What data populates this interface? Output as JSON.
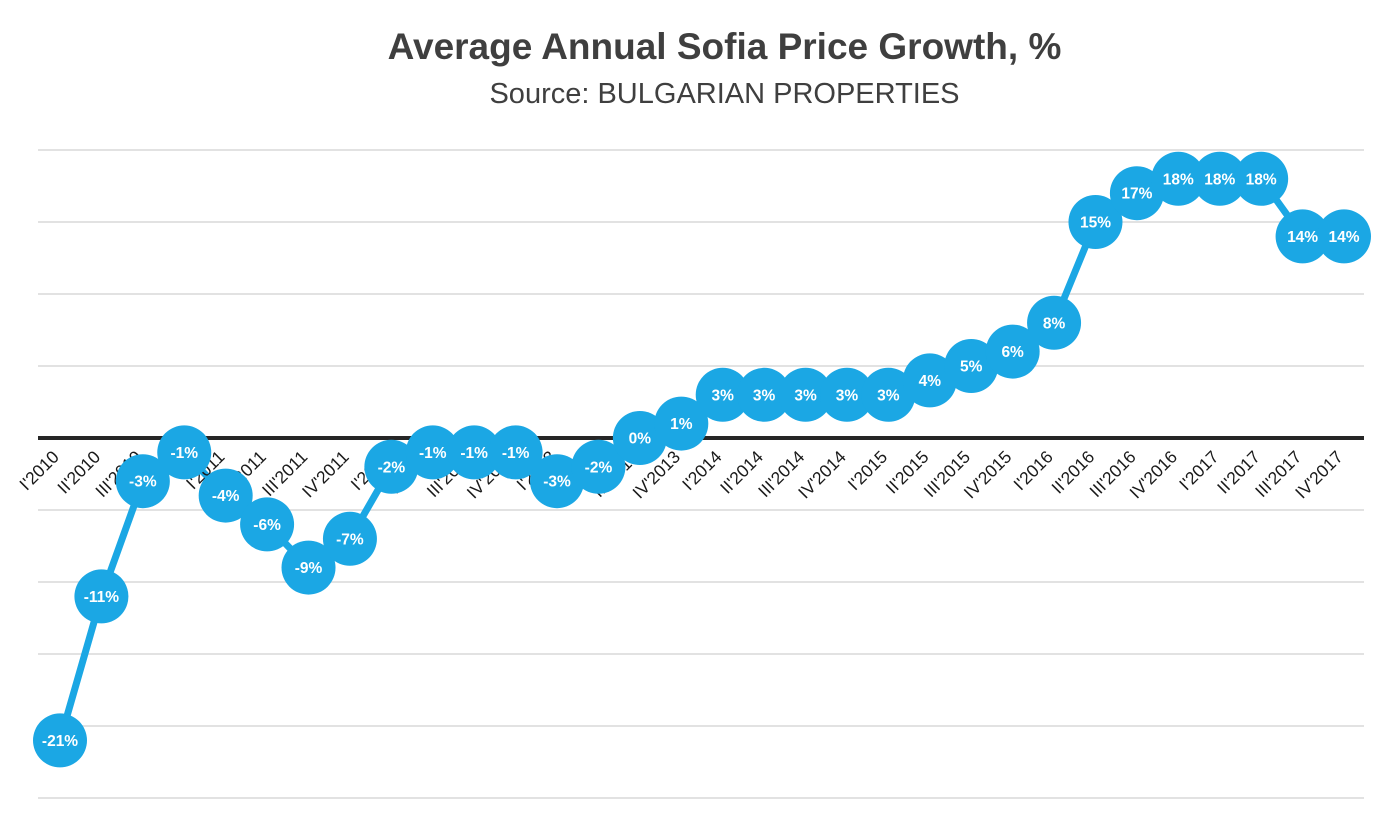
{
  "header": {
    "title": "Average Annual Sofia Price Growth, %",
    "subtitle": "Source: BULGARIAN PROPERTIES"
  },
  "colors": {
    "series": "#1BA7E4",
    "data_label": "#ffffff",
    "axis_line": "#262626",
    "gridline": "#d9d9d9",
    "title": "#3f3f3f",
    "tick_label": "#1a1a1a",
    "background": "#ffffff"
  },
  "chart_data": {
    "type": "line",
    "title": "Average Annual Sofia Price Growth, %",
    "subtitle": "Source: BULGARIAN PROPERTIES",
    "categories": [
      "I'2010",
      "II'2010",
      "III'2010",
      "IV'2010",
      "I'2011",
      "II'2011",
      "III'2011",
      "IV'2011",
      "I'2012",
      "II'2012",
      "III'2012",
      "IV'2012",
      "I'2013",
      "II'2013",
      "III'2013",
      "IV'2013",
      "I'2014",
      "II'2014",
      "III'2014",
      "IV'2014",
      "I'2015",
      "II'2015",
      "III'2015",
      "IV'2015",
      "I'2016",
      "II'2016",
      "III'2016",
      "IV'2016",
      "I'2017",
      "II'2017",
      "III'2017",
      "IV'2017"
    ],
    "values": [
      -21,
      -11,
      -3,
      -1,
      -4,
      -6,
      -9,
      -7,
      -2,
      -1,
      -1,
      -1,
      -3,
      -2,
      0,
      1,
      3,
      3,
      3,
      3,
      3,
      4,
      5,
      6,
      8,
      15,
      17,
      18,
      18,
      18,
      14,
      14
    ],
    "data_labels": [
      "-21%",
      "-11%",
      "-3%",
      "-1%",
      "-4%",
      "-6%",
      "-9%",
      "-7%",
      "-2%",
      "-1%",
      "-1%",
      "-1%",
      "-3%",
      "-2%",
      "0%",
      "1%",
      "3%",
      "3%",
      "3%",
      "3%",
      "3%",
      "4%",
      "5%",
      "6%",
      "8%",
      "15%",
      "17%",
      "18%",
      "18%",
      "18%",
      "14%",
      "14%"
    ],
    "xlabel": "",
    "ylabel": "",
    "ylim": [
      -25,
      20
    ],
    "grid_step": 5,
    "grid": true,
    "legend": "none",
    "marker": "large-circle",
    "x_tick_rotation": -45
  }
}
